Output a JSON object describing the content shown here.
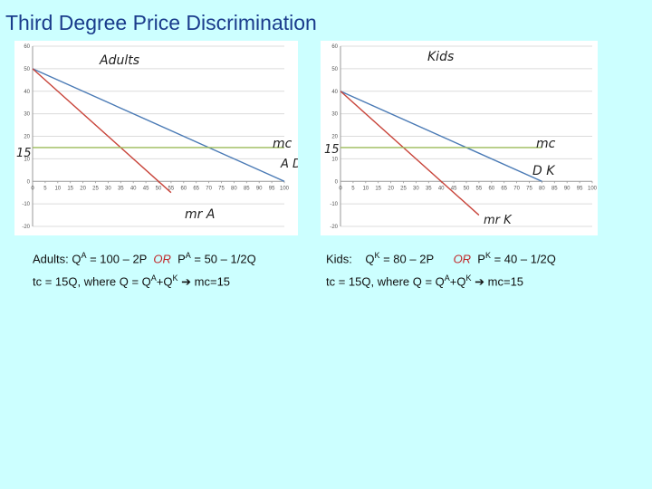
{
  "title": "Third Degree Price Discrimination",
  "chart_data": [
    {
      "type": "line",
      "panel": "left",
      "title": "Adults",
      "xlim": [
        0,
        100
      ],
      "ylim": [
        -20,
        60
      ],
      "x_ticks": [
        "0",
        "5",
        "10",
        "15",
        "20",
        "25",
        "30",
        "35",
        "40",
        "45",
        "50",
        "55",
        "60",
        "65",
        "70",
        "75",
        "80",
        "85",
        "90",
        "95",
        "100"
      ],
      "y_ticks": [
        "60",
        "50",
        "40",
        "30",
        "20",
        "10",
        "0",
        "-10",
        "-20"
      ],
      "grid": true,
      "series": [
        {
          "name": "D",
          "label": "A D",
          "color": "#4a7ab5",
          "x": [
            0,
            100
          ],
          "y": [
            50,
            0
          ]
        },
        {
          "name": "mr",
          "label": "mr A",
          "color": "#c8443a",
          "x": [
            0,
            55
          ],
          "y": [
            50,
            -5
          ]
        },
        {
          "name": "mc",
          "label": "mc",
          "color": "#9bbb59",
          "x": [
            0,
            100
          ],
          "y": [
            15,
            15
          ]
        }
      ],
      "annotations": [
        "15"
      ]
    },
    {
      "type": "line",
      "panel": "right",
      "title": "Kids",
      "xlim": [
        0,
        100
      ],
      "ylim": [
        -20,
        60
      ],
      "x_ticks": [
        "0",
        "5",
        "10",
        "15",
        "20",
        "25",
        "30",
        "35",
        "40",
        "45",
        "50",
        "55",
        "60",
        "65",
        "70",
        "75",
        "80",
        "85",
        "90",
        "95",
        "100"
      ],
      "y_ticks": [
        "60",
        "50",
        "40",
        "30",
        "20",
        "10",
        "0",
        "-10",
        "-20"
      ],
      "grid": true,
      "series": [
        {
          "name": "D",
          "label": "D K",
          "color": "#4a7ab5",
          "x": [
            0,
            80
          ],
          "y": [
            40,
            0
          ]
        },
        {
          "name": "mr",
          "label": "mr K",
          "color": "#c8443a",
          "x": [
            0,
            55
          ],
          "y": [
            40,
            -15
          ]
        },
        {
          "name": "mc",
          "label": "mc",
          "color": "#9bbb59",
          "x": [
            0,
            80
          ],
          "y": [
            15,
            15
          ]
        }
      ],
      "annotations": [
        "15"
      ]
    }
  ],
  "equations": {
    "left_demand": {
      "prefix": "Adults: Q",
      "sup1": "A",
      "mid": " = 100 – 2P  ",
      "or": "OR",
      "p": "  P",
      "sup2": "A",
      "rest": " = 50 – 1/2Q"
    },
    "right_demand": {
      "prefix": "Kids:    Q",
      "sup1": "K",
      "mid": " = 80 – 2P      ",
      "or": "OR",
      "p": "  P",
      "sup2": "K",
      "rest": " = 40 – 1/2Q"
    },
    "cost": {
      "a": "tc = 15Q, where Q = Q",
      "supA": "A",
      "plus": "+Q",
      "supK": "K",
      "arrow": " ➔ ",
      "b": "mc=15"
    }
  }
}
